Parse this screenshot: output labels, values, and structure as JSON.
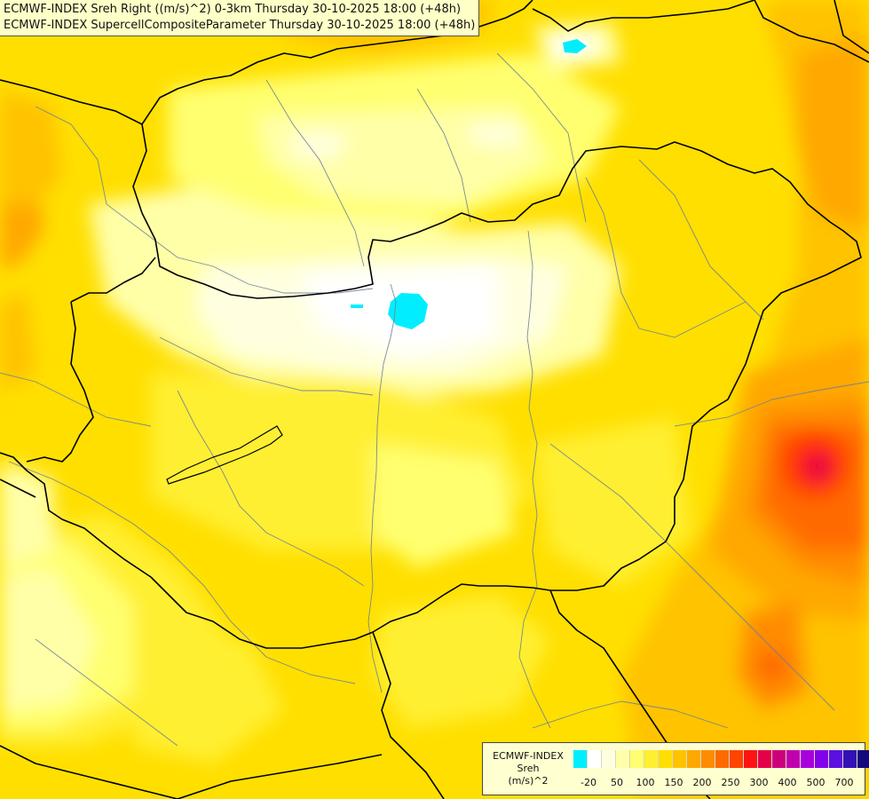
{
  "header": {
    "line1": "ECMWF-INDEX Sreh Right ((m/s)^2) 0-3km Thursday 30-10-2025 18:00 (+48h)",
    "line2": "ECMWF-INDEX SupercellCompositeParameter Thursday 30-10-2025 18:00 (+48h)"
  },
  "legend": {
    "title1": "ECMWF-INDEX",
    "title2": "Sreh",
    "title3": "(m/s)^2",
    "colors": [
      "#00eeff",
      "#ffffff",
      "#ffffe0",
      "#ffffa8",
      "#ffff70",
      "#ffef30",
      "#ffdf00",
      "#ffc300",
      "#ffa800",
      "#ff8c00",
      "#ff6a00",
      "#ff4400",
      "#ff1414",
      "#e4004a",
      "#cc007c",
      "#c000b0",
      "#a800dc",
      "#8200ea",
      "#5a10e0",
      "#3410b8",
      "#14087e"
    ],
    "ticks": [
      {
        "label": "-20",
        "index": 1
      },
      {
        "label": "50",
        "index": 3
      },
      {
        "label": "100",
        "index": 5
      },
      {
        "label": "150",
        "index": 7
      },
      {
        "label": "200",
        "index": 9
      },
      {
        "label": "250",
        "index": 11
      },
      {
        "label": "300",
        "index": 13
      },
      {
        "label": "400",
        "index": 15
      },
      {
        "label": "500",
        "index": 17
      },
      {
        "label": "700",
        "index": 19
      }
    ]
  }
}
